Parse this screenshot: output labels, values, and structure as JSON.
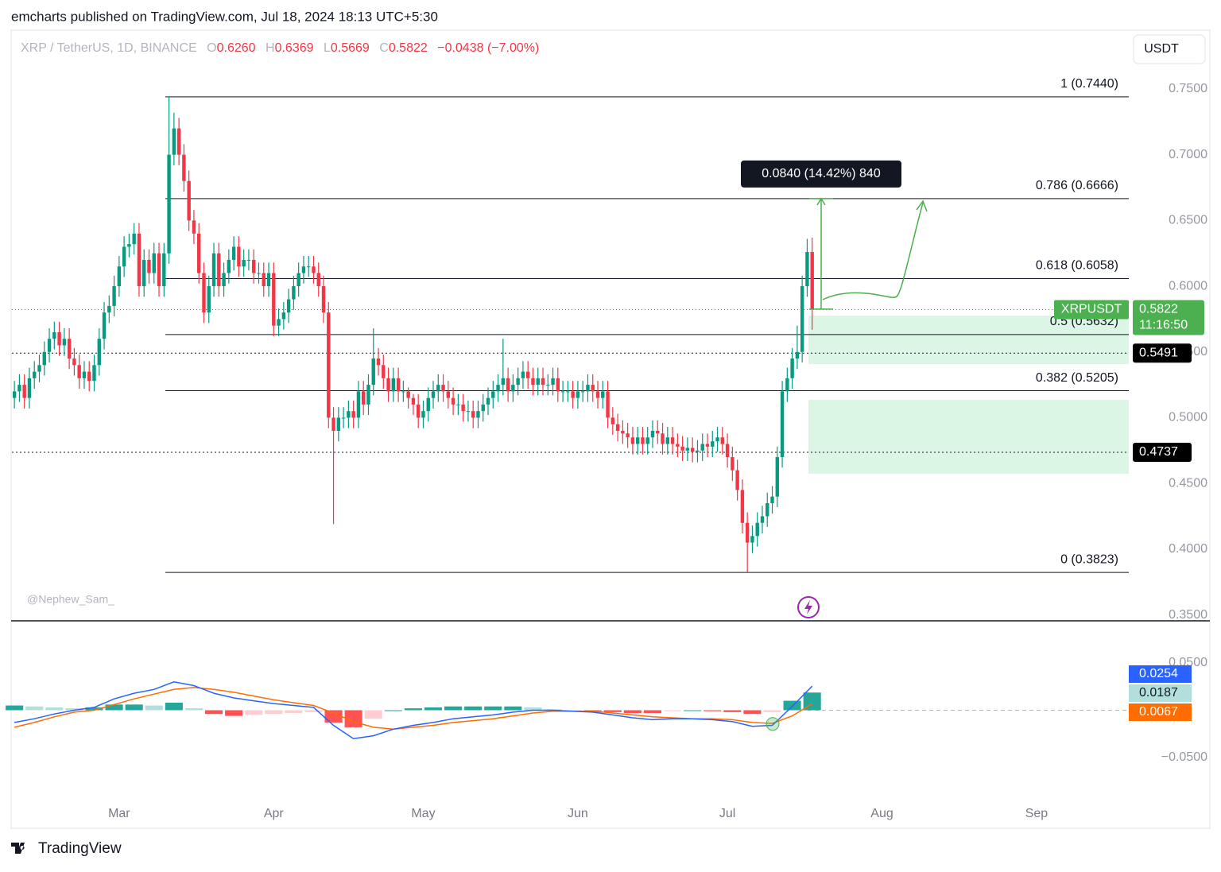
{
  "header": {
    "publisher": "emcharts published on TradingView.com, Jul 18, 2024 18:13 UTC+5:30"
  },
  "watermark": "@Nephew_Sam_",
  "brand": "TradingView",
  "chart_data": [
    {
      "type": "candlestick",
      "symbol": "XRP / TetherUS, 1D, BINANCE",
      "currency": "USDT",
      "ticker": "XRPUSDT",
      "countdown": "11:16:50",
      "ohlc_letters": {
        "open": "O",
        "high": "H",
        "low": "L",
        "close": "C"
      },
      "last": {
        "open": {
          "value": 0.626,
          "label": "0.6260"
        },
        "high": 0.6369,
        "low": 0.5669,
        "close": 0.5822,
        "change": {
          "value": -0.0438,
          "label": "−0.0438 (−7.00%)"
        }
      },
      "xlim": [
        -0.5,
        223.5
      ],
      "xticks": [
        {
          "value": 21,
          "label": "Mar"
        },
        {
          "value": 52,
          "label": "Apr"
        },
        {
          "value": 82,
          "label": "May"
        },
        {
          "value": 113,
          "label": "Jun"
        },
        {
          "value": 143,
          "label": "Jul"
        },
        {
          "value": 174,
          "label": "Aug"
        },
        {
          "value": 205,
          "label": "Sep"
        }
      ],
      "ylim": [
        0.3455,
        0.7947
      ],
      "yticks": [
        {
          "value": 0.35,
          "label": "0.3500"
        },
        {
          "value": 0.4,
          "label": "0.4000"
        },
        {
          "value": 0.45,
          "label": "0.4500"
        },
        {
          "value": 0.5,
          "label": "0.5000"
        },
        {
          "value": 0.55,
          "label": "0.5500"
        },
        {
          "value": 0.6,
          "label": "0.6000"
        },
        {
          "value": 0.65,
          "label": "0.6500"
        },
        {
          "value": 0.7,
          "label": "0.7000"
        },
        {
          "value": 0.75,
          "label": "0.7500"
        }
      ],
      "up_color": "#089981",
      "down_color": "#f23645",
      "open": [
        0.515,
        0.52,
        0.525,
        0.515,
        0.53,
        0.535,
        0.54,
        0.55,
        0.56,
        0.565,
        0.555,
        0.56,
        0.545,
        0.54,
        0.53,
        0.535,
        0.528,
        0.54,
        0.56,
        0.58,
        0.585,
        0.6,
        0.615,
        0.63,
        0.632,
        0.64,
        0.6,
        0.62,
        0.61,
        0.625,
        0.6,
        0.625,
        0.7,
        0.72,
        0.7,
        0.68,
        0.65,
        0.64,
        0.61,
        0.58,
        0.6,
        0.625,
        0.6,
        0.61,
        0.62,
        0.63,
        0.615,
        0.62,
        0.62,
        0.61,
        0.61,
        0.6,
        0.61,
        0.57,
        0.575,
        0.58,
        0.59,
        0.6,
        0.61,
        0.615,
        0.615,
        0.61,
        0.6,
        0.58,
        0.5,
        0.49,
        0.5,
        0.5,
        0.505,
        0.5,
        0.52,
        0.51,
        0.525,
        0.545,
        0.54,
        0.53,
        0.52,
        0.53,
        0.52,
        0.52,
        0.515,
        0.51,
        0.5,
        0.505,
        0.515,
        0.52,
        0.525,
        0.52,
        0.515,
        0.51,
        0.51,
        0.505,
        0.505,
        0.5,
        0.505,
        0.51,
        0.515,
        0.52,
        0.525,
        0.53,
        0.52,
        0.525,
        0.53,
        0.535,
        0.53,
        0.525,
        0.53,
        0.525,
        0.525,
        0.53,
        0.52,
        0.52,
        0.52,
        0.515,
        0.52,
        0.52,
        0.525,
        0.52,
        0.515,
        0.52,
        0.5,
        0.495,
        0.49,
        0.488,
        0.485,
        0.48,
        0.485,
        0.48,
        0.485,
        0.49,
        0.488,
        0.48,
        0.485,
        0.48,
        0.478,
        0.475,
        0.477,
        0.474,
        0.475,
        0.48,
        0.478,
        0.482,
        0.485,
        0.48,
        0.47,
        0.46,
        0.445,
        0.42,
        0.405,
        0.41,
        0.42,
        0.425,
        0.435,
        0.44,
        0.47,
        0.52,
        0.53,
        0.545,
        0.55,
        0.6,
        0.626
      ],
      "high": [
        0.528,
        0.533,
        0.533,
        0.538,
        0.543,
        0.548,
        0.558,
        0.568,
        0.573,
        0.573,
        0.568,
        0.568,
        0.553,
        0.548,
        0.543,
        0.543,
        0.548,
        0.568,
        0.588,
        0.593,
        0.608,
        0.623,
        0.638,
        0.64,
        0.648,
        0.648,
        0.628,
        0.628,
        0.633,
        0.633,
        0.633,
        0.744,
        0.732,
        0.728,
        0.708,
        0.688,
        0.658,
        0.648,
        0.618,
        0.608,
        0.633,
        0.633,
        0.618,
        0.628,
        0.638,
        0.638,
        0.628,
        0.628,
        0.628,
        0.618,
        0.618,
        0.618,
        0.618,
        0.583,
        0.588,
        0.598,
        0.608,
        0.618,
        0.623,
        0.623,
        0.623,
        0.618,
        0.608,
        0.588,
        0.508,
        0.508,
        0.508,
        0.513,
        0.513,
        0.528,
        0.528,
        0.533,
        0.568,
        0.553,
        0.548,
        0.538,
        0.538,
        0.538,
        0.528,
        0.523,
        0.518,
        0.518,
        0.513,
        0.523,
        0.528,
        0.533,
        0.533,
        0.528,
        0.523,
        0.518,
        0.518,
        0.513,
        0.513,
        0.513,
        0.518,
        0.523,
        0.528,
        0.533,
        0.56,
        0.538,
        0.533,
        0.538,
        0.543,
        0.543,
        0.538,
        0.538,
        0.538,
        0.533,
        0.538,
        0.538,
        0.528,
        0.528,
        0.528,
        0.528,
        0.528,
        0.533,
        0.533,
        0.528,
        0.528,
        0.528,
        0.508,
        0.503,
        0.498,
        0.496,
        0.493,
        0.493,
        0.493,
        0.493,
        0.498,
        0.498,
        0.496,
        0.493,
        0.493,
        0.488,
        0.486,
        0.485,
        0.485,
        0.483,
        0.488,
        0.488,
        0.49,
        0.493,
        0.493,
        0.488,
        0.478,
        0.468,
        0.453,
        0.428,
        0.418,
        0.428,
        0.433,
        0.443,
        0.448,
        0.478,
        0.528,
        0.538,
        0.553,
        0.57,
        0.608,
        0.636,
        0.6369
      ],
      "low": [
        0.507,
        0.512,
        0.507,
        0.507,
        0.522,
        0.527,
        0.532,
        0.542,
        0.552,
        0.547,
        0.547,
        0.537,
        0.532,
        0.522,
        0.522,
        0.52,
        0.52,
        0.532,
        0.552,
        0.572,
        0.577,
        0.592,
        0.607,
        0.622,
        0.624,
        0.592,
        0.592,
        0.602,
        0.602,
        0.592,
        0.592,
        0.617,
        0.692,
        0.692,
        0.672,
        0.642,
        0.632,
        0.602,
        0.572,
        0.572,
        0.592,
        0.592,
        0.592,
        0.602,
        0.612,
        0.607,
        0.607,
        0.612,
        0.602,
        0.602,
        0.592,
        0.592,
        0.562,
        0.562,
        0.567,
        0.572,
        0.582,
        0.592,
        0.602,
        0.607,
        0.602,
        0.592,
        0.572,
        0.492,
        0.419,
        0.482,
        0.492,
        0.492,
        0.492,
        0.492,
        0.502,
        0.502,
        0.517,
        0.532,
        0.522,
        0.512,
        0.512,
        0.512,
        0.512,
        0.507,
        0.502,
        0.492,
        0.492,
        0.497,
        0.507,
        0.512,
        0.512,
        0.507,
        0.502,
        0.502,
        0.497,
        0.497,
        0.492,
        0.492,
        0.497,
        0.502,
        0.507,
        0.512,
        0.517,
        0.512,
        0.512,
        0.517,
        0.522,
        0.522,
        0.517,
        0.517,
        0.517,
        0.517,
        0.517,
        0.512,
        0.512,
        0.512,
        0.507,
        0.507,
        0.512,
        0.512,
        0.512,
        0.507,
        0.507,
        0.492,
        0.487,
        0.482,
        0.48,
        0.477,
        0.472,
        0.472,
        0.472,
        0.472,
        0.477,
        0.48,
        0.472,
        0.472,
        0.472,
        0.47,
        0.467,
        0.467,
        0.466,
        0.466,
        0.467,
        0.47,
        0.47,
        0.474,
        0.472,
        0.462,
        0.452,
        0.437,
        0.412,
        0.3823,
        0.397,
        0.402,
        0.412,
        0.417,
        0.427,
        0.432,
        0.462,
        0.512,
        0.522,
        0.537,
        0.542,
        0.592,
        0.5669
      ],
      "close": [
        0.52,
        0.525,
        0.515,
        0.53,
        0.535,
        0.54,
        0.55,
        0.56,
        0.565,
        0.555,
        0.56,
        0.545,
        0.54,
        0.53,
        0.535,
        0.528,
        0.54,
        0.56,
        0.58,
        0.585,
        0.6,
        0.615,
        0.63,
        0.632,
        0.64,
        0.6,
        0.62,
        0.61,
        0.625,
        0.6,
        0.625,
        0.7,
        0.72,
        0.7,
        0.68,
        0.65,
        0.64,
        0.61,
        0.58,
        0.6,
        0.625,
        0.6,
        0.61,
        0.62,
        0.63,
        0.615,
        0.62,
        0.62,
        0.61,
        0.61,
        0.6,
        0.61,
        0.57,
        0.575,
        0.58,
        0.59,
        0.6,
        0.61,
        0.615,
        0.615,
        0.61,
        0.6,
        0.58,
        0.5,
        0.49,
        0.5,
        0.5,
        0.505,
        0.5,
        0.52,
        0.51,
        0.525,
        0.545,
        0.54,
        0.53,
        0.52,
        0.53,
        0.52,
        0.52,
        0.515,
        0.51,
        0.5,
        0.505,
        0.515,
        0.52,
        0.525,
        0.52,
        0.515,
        0.51,
        0.51,
        0.505,
        0.505,
        0.5,
        0.505,
        0.51,
        0.515,
        0.52,
        0.525,
        0.53,
        0.52,
        0.525,
        0.53,
        0.535,
        0.53,
        0.525,
        0.53,
        0.525,
        0.525,
        0.53,
        0.52,
        0.52,
        0.52,
        0.515,
        0.52,
        0.52,
        0.525,
        0.52,
        0.515,
        0.52,
        0.5,
        0.495,
        0.49,
        0.488,
        0.485,
        0.48,
        0.485,
        0.48,
        0.485,
        0.49,
        0.488,
        0.48,
        0.485,
        0.48,
        0.478,
        0.475,
        0.477,
        0.474,
        0.475,
        0.48,
        0.478,
        0.482,
        0.485,
        0.48,
        0.47,
        0.46,
        0.445,
        0.42,
        0.405,
        0.41,
        0.42,
        0.425,
        0.435,
        0.44,
        0.47,
        0.52,
        0.53,
        0.545,
        0.55,
        0.6,
        0.626,
        0.5822
      ],
      "fib_levels": [
        {
          "value": 0.744,
          "label": "1 (0.7440)"
        },
        {
          "value": 0.6666,
          "label": "0.786 (0.6666)"
        },
        {
          "value": 0.6058,
          "label": "0.618 (0.6058)"
        },
        {
          "value": 0.5632,
          "label": "0.5 (0.5632)"
        },
        {
          "value": 0.5205,
          "label": "0.382 (0.5205)"
        },
        {
          "value": 0.3823,
          "label": "0 (0.3823)"
        }
      ],
      "price_lines": [
        0.5491,
        0.4737
      ],
      "zone_color": "#dcf6e5",
      "zones": [
        {
          "top": 0.5776,
          "bottom": 0.5408
        },
        {
          "top": 0.5136,
          "bottom": 0.4574
        }
      ],
      "measure": {
        "from": 0.5826,
        "to": 0.6666,
        "label": "0.0840 (14.42%) 840",
        "color": "#4caf50"
      }
    },
    {
      "type": "macd",
      "x": [
        0,
        4,
        8,
        12,
        16,
        20,
        24,
        28,
        32,
        36,
        40,
        44,
        48,
        52,
        56,
        60,
        64,
        68,
        72,
        76,
        80,
        84,
        88,
        92,
        96,
        100,
        104,
        108,
        112,
        116,
        120,
        124,
        128,
        132,
        136,
        140,
        144,
        148,
        152,
        156,
        160
      ],
      "ylim": [
        -0.0937,
        0.0945
      ],
      "yticks": [
        {
          "value": 0.05,
          "label": "0.0500"
        },
        {
          "value": -0.05,
          "label": "−0.0500"
        }
      ],
      "macd": {
        "color": "#2962ff",
        "values": [
          -0.013,
          -0.009,
          -0.004,
          0.0,
          0.003,
          0.012,
          0.018,
          0.022,
          0.03,
          0.026,
          0.018,
          0.013,
          0.01,
          0.007,
          0.005,
          0.003,
          -0.016,
          -0.03,
          -0.027,
          -0.02,
          -0.016,
          -0.013,
          -0.009,
          -0.007,
          -0.005,
          -0.002,
          0.0,
          0.0,
          -0.001,
          -0.002,
          -0.005,
          -0.008,
          -0.01,
          -0.009,
          -0.009,
          -0.01,
          -0.012,
          -0.017,
          -0.016,
          0.004,
          0.0254
        ]
      },
      "signal": {
        "color": "#ff6d00",
        "values": [
          -0.018,
          -0.013,
          -0.007,
          -0.002,
          0.0,
          0.006,
          0.012,
          0.017,
          0.022,
          0.024,
          0.022,
          0.019,
          0.015,
          0.011,
          0.008,
          0.005,
          -0.003,
          -0.012,
          -0.018,
          -0.02,
          -0.018,
          -0.016,
          -0.013,
          -0.011,
          -0.009,
          -0.006,
          -0.003,
          -0.001,
          -0.001,
          -0.001,
          -0.003,
          -0.005,
          -0.007,
          -0.008,
          -0.009,
          -0.009,
          -0.01,
          -0.013,
          -0.014,
          -0.006,
          0.0067
        ]
      },
      "histogram": {
        "colors": {
          "pos_up": "#26a69a",
          "pos_down": "#b2dfdb",
          "neg_down": "#ff5252",
          "neg_up": "#ffcdd2"
        },
        "values": [
          0.005,
          0.004,
          0.003,
          0.002,
          0.003,
          0.006,
          0.006,
          0.005,
          0.008,
          0.002,
          -0.004,
          -0.006,
          -0.005,
          -0.004,
          -0.003,
          -0.002,
          -0.013,
          -0.018,
          -0.009,
          0.0,
          0.002,
          0.003,
          0.004,
          0.004,
          0.004,
          0.004,
          0.003,
          0.001,
          0.0,
          -0.001,
          -0.002,
          -0.003,
          -0.003,
          -0.001,
          0.0,
          -0.001,
          -0.002,
          -0.004,
          -0.002,
          0.01,
          0.0187
        ]
      }
    }
  ]
}
